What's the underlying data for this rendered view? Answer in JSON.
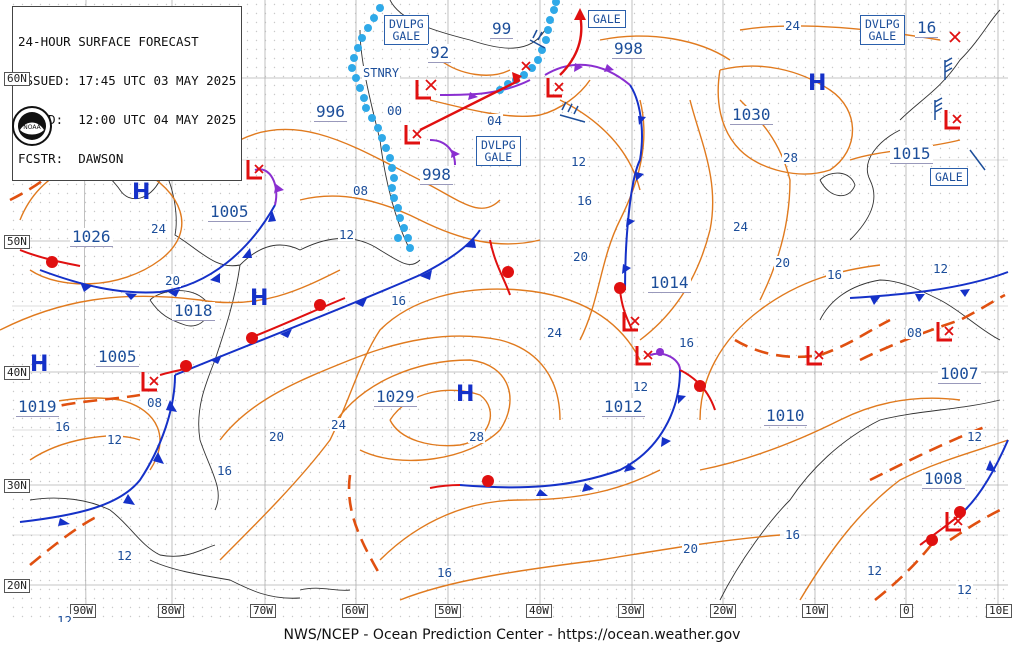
{
  "header": {
    "line1": "24-HOUR SURFACE FORECAST",
    "line2": "ISSUED: 17:45 UTC 03 MAY 2025",
    "line3": "VALID:  12:00 UTC 04 MAY 2025",
    "line4": "FCSTR:  DAWSON"
  },
  "footer": "NWS/NCEP - Ocean Prediction Center - https://ocean.weather.gov",
  "logo": "NOAA",
  "stnry": "STNRY",
  "lat_labels": [
    "60N",
    "50N",
    "40N",
    "30N",
    "20N"
  ],
  "lon_labels": [
    "90W",
    "80W",
    "70W",
    "60W",
    "50W",
    "40W",
    "30W",
    "20W",
    "10W",
    "0",
    "10E"
  ],
  "highs": [
    "H",
    "H",
    "H",
    "H",
    "H"
  ],
  "warnings": {
    "dvlpg_gale_1": [
      "DVLPG",
      "GALE"
    ],
    "dvlpg_gale_2": [
      "DVLPG",
      "GALE"
    ],
    "dvlpg_gale_3": [
      "DVLPG",
      "GALE"
    ],
    "gale_1": "GALE",
    "gale_2": "GALE"
  },
  "pressures": {
    "p996": "996",
    "p998a": "998",
    "p92": "92",
    "p99": "99",
    "p998b": "998",
    "p1030": "1030",
    "p1015": "1015",
    "p16ne": "16",
    "p1005a": "1005",
    "p1026": "1026",
    "p1018": "1018",
    "p1005b": "1005",
    "p1019": "1019",
    "p1029": "1029",
    "p1014": "1014",
    "p1012": "1012",
    "p1010": "1010",
    "p1007": "1007",
    "p1008": "1008"
  },
  "isobars": {
    "i00": "00",
    "i04": "04",
    "i08a": "08",
    "i12a": "12",
    "i12b": "12",
    "i16a": "16",
    "i24a": "24",
    "i28a": "28",
    "i24b": "24",
    "i20a": "20",
    "i16b": "16",
    "i12c": "12",
    "i24c": "24",
    "i20b": "20",
    "i16c": "16",
    "i08b": "08",
    "i16d": "16",
    "i12d": "12",
    "i20c": "20",
    "i24d": "24",
    "i28b": "28",
    "i16e": "16",
    "i20d": "20",
    "i16f": "16",
    "i12e": "12",
    "i08c": "08",
    "i12f": "12",
    "i12g": "12",
    "i16g": "16",
    "i12h": "12",
    "i12i": "12",
    "i20e": "20",
    "i24e": "24",
    "i12j": "12"
  },
  "colors": {
    "isobar": "#e07a1e",
    "cold_front": "#1531c8",
    "warm_front": "#e01010",
    "occluded": "#8a2fd0",
    "stationary_dots": "#2fa9e8",
    "grid": "#b8b8b8"
  }
}
